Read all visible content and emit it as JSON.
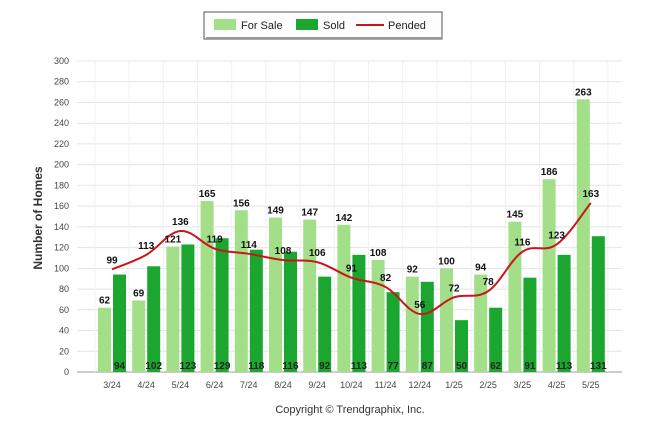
{
  "chart_data": {
    "type": "bar",
    "ylabel": "Number of Homes",
    "xlabel": "",
    "ylim": [
      0,
      300
    ],
    "y_ticks": [
      0,
      20,
      40,
      60,
      80,
      100,
      120,
      140,
      160,
      180,
      200,
      220,
      240,
      260,
      280,
      300
    ],
    "grid": true,
    "legend_position": "top-center",
    "categories": [
      "3/24",
      "4/24",
      "5/24",
      "6/24",
      "7/24",
      "8/24",
      "9/24",
      "10/24",
      "11/24",
      "12/24",
      "1/25",
      "2/25",
      "3/25",
      "4/25",
      "5/25"
    ],
    "series": [
      {
        "name": "For Sale",
        "type": "bar",
        "color": "#a3df88",
        "values": [
          62,
          69,
          121,
          165,
          156,
          149,
          147,
          142,
          108,
          92,
          100,
          94,
          145,
          186,
          263
        ]
      },
      {
        "name": "Sold",
        "type": "bar",
        "color": "#1aa62f",
        "values": [
          94,
          102,
          123,
          129,
          118,
          116,
          92,
          113,
          77,
          87,
          50,
          62,
          91,
          113,
          131
        ]
      },
      {
        "name": "Pended",
        "type": "line",
        "color": "#c8161d",
        "values": [
          99,
          113,
          136,
          119,
          114,
          108,
          106,
          91,
          82,
          56,
          72,
          78,
          116,
          123,
          163
        ]
      }
    ]
  },
  "footer": "Copyright © Trendgraphix, Inc."
}
